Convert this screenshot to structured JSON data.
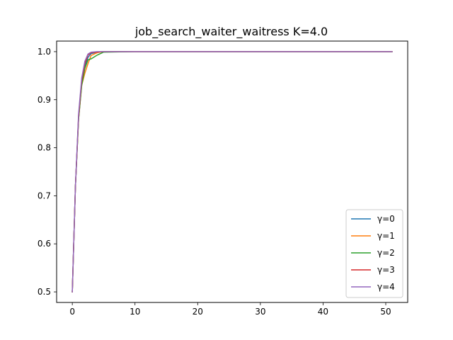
{
  "chart_data": {
    "type": "line",
    "title": "job_search_waiter_waitress K=4.0",
    "xlabel": "",
    "ylabel": "",
    "xlim": [
      -2.5,
      53.5
    ],
    "ylim": [
      0.478,
      1.022
    ],
    "xticks": [
      0,
      10,
      20,
      30,
      40,
      50
    ],
    "yticks": [
      0.5,
      0.6,
      0.7,
      0.8,
      0.9,
      1.0
    ],
    "xtick_labels": [
      "0",
      "10",
      "20",
      "30",
      "40",
      "50"
    ],
    "ytick_labels": [
      "0.5",
      "0.6",
      "0.7",
      "0.8",
      "0.9",
      "1.0"
    ],
    "grid": false,
    "legend_position": "lower-right",
    "series": [
      {
        "name": "γ=0",
        "color": "#1f77b4",
        "x": [
          0,
          0.5,
          1,
          1.5,
          2,
          2.5,
          3,
          4,
          5,
          10,
          20,
          30,
          51
        ],
        "y": [
          0.5,
          0.72,
          0.86,
          0.935,
          0.97,
          0.988,
          0.996,
          0.999,
          1.0,
          1.0,
          1.0,
          1.0,
          1.0
        ]
      },
      {
        "name": "γ=1",
        "color": "#ff7f0e",
        "x": [
          0,
          0.5,
          1,
          1.5,
          2,
          2.5,
          3,
          4,
          5,
          10,
          20,
          30,
          51
        ],
        "y": [
          0.5,
          0.72,
          0.86,
          0.93,
          0.955,
          0.975,
          0.992,
          0.998,
          1.0,
          1.0,
          1.0,
          1.0,
          1.0
        ]
      },
      {
        "name": "γ=2",
        "color": "#2ca02c",
        "x": [
          0,
          0.5,
          1,
          1.5,
          2,
          2.5,
          3,
          4,
          5,
          10,
          20,
          30,
          51
        ],
        "y": [
          0.5,
          0.72,
          0.86,
          0.93,
          0.965,
          0.983,
          0.985,
          0.993,
          0.999,
          1.0,
          1.0,
          1.0,
          1.0
        ]
      },
      {
        "name": "γ=3",
        "color": "#d62728",
        "x": [
          0,
          0.5,
          1,
          1.5,
          2,
          2.5,
          3,
          4,
          5,
          10,
          20,
          23,
          51
        ],
        "y": [
          0.5,
          0.72,
          0.865,
          0.94,
          0.975,
          0.993,
          0.998,
          0.999,
          1.0,
          1.0,
          1.0,
          1.0,
          1.0
        ]
      },
      {
        "name": "γ=4",
        "color": "#9467bd",
        "x": [
          0,
          0.5,
          1,
          1.5,
          2,
          2.5,
          3,
          4,
          5,
          10,
          20,
          30,
          51
        ],
        "y": [
          0.5,
          0.72,
          0.87,
          0.945,
          0.98,
          0.995,
          0.999,
          1.0,
          1.0,
          1.0,
          1.0,
          1.0,
          1.0
        ]
      }
    ]
  }
}
